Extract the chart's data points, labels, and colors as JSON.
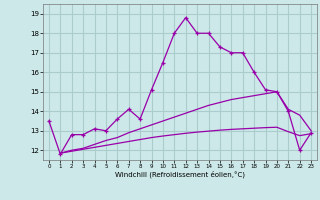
{
  "xlabel": "Windchill (Refroidissement éolien,°C)",
  "bg_color": "#cce8e8",
  "grid_color": "#aacccc",
  "line_color": "#9900aa",
  "x_ticks": [
    0,
    1,
    2,
    3,
    4,
    5,
    6,
    7,
    8,
    9,
    10,
    11,
    12,
    13,
    14,
    15,
    16,
    17,
    18,
    19,
    20,
    21,
    22,
    23
  ],
  "y_ticks": [
    12,
    13,
    14,
    15,
    16,
    17,
    18,
    19
  ],
  "ylim": [
    11.5,
    19.5
  ],
  "xlim": [
    -0.5,
    23.5
  ],
  "series1_x": [
    0,
    1,
    2,
    3,
    4,
    5,
    6,
    7,
    8,
    9,
    10,
    11,
    12,
    13,
    14,
    15,
    16,
    17,
    18,
    19,
    20,
    21,
    22,
    23
  ],
  "series1_y": [
    13.5,
    11.8,
    12.8,
    12.8,
    13.1,
    13.0,
    13.6,
    14.1,
    13.6,
    15.1,
    16.5,
    18.0,
    18.8,
    18.0,
    18.0,
    17.3,
    17.0,
    17.0,
    16.0,
    15.1,
    15.0,
    14.0,
    12.0,
    12.9
  ],
  "series2_x": [
    1,
    2,
    3,
    4,
    5,
    6,
    7,
    8,
    9,
    10,
    11,
    12,
    13,
    14,
    15,
    16,
    17,
    18,
    19,
    20,
    21,
    22,
    23
  ],
  "series2_y": [
    11.85,
    12.0,
    12.1,
    12.3,
    12.5,
    12.65,
    12.9,
    13.1,
    13.3,
    13.5,
    13.7,
    13.9,
    14.1,
    14.3,
    14.45,
    14.6,
    14.7,
    14.8,
    14.9,
    15.0,
    14.1,
    13.8,
    13.0
  ],
  "series3_x": [
    1,
    2,
    3,
    4,
    5,
    6,
    7,
    8,
    9,
    10,
    11,
    12,
    13,
    14,
    15,
    16,
    17,
    18,
    19,
    20,
    21,
    22,
    23
  ],
  "series3_y": [
    11.85,
    11.95,
    12.05,
    12.15,
    12.25,
    12.35,
    12.45,
    12.55,
    12.65,
    12.73,
    12.8,
    12.87,
    12.93,
    12.98,
    13.03,
    13.07,
    13.1,
    13.13,
    13.16,
    13.18,
    12.95,
    12.75,
    12.85
  ]
}
